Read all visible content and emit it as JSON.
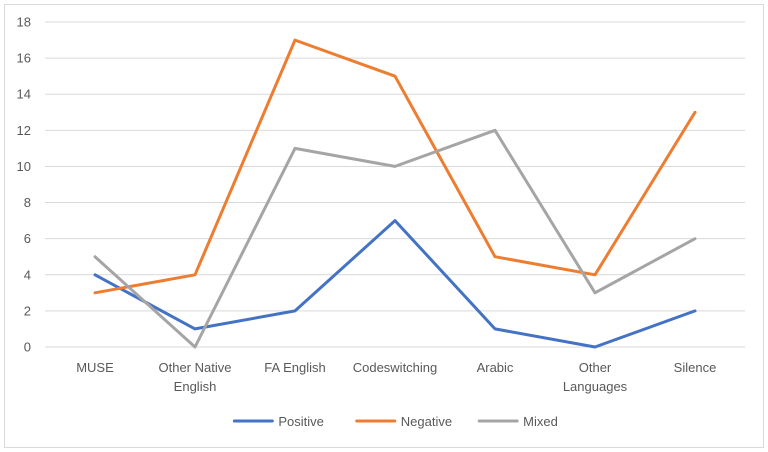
{
  "chart_data": {
    "type": "line",
    "title": "",
    "xlabel": "",
    "ylabel": "",
    "categories": [
      [
        "MUSE"
      ],
      [
        "Other Native",
        "English"
      ],
      [
        "FA English"
      ],
      [
        "Codeswitching"
      ],
      [
        "Arabic"
      ],
      [
        "Other",
        "Languages"
      ],
      [
        "Silence"
      ]
    ],
    "ylim": [
      0,
      18
    ],
    "yticks": [
      0,
      2,
      4,
      6,
      8,
      10,
      12,
      14,
      16,
      18
    ],
    "grid": true,
    "legend_position": "bottom",
    "series": [
      {
        "name": "Positive",
        "color": "#4472c4",
        "values": [
          4,
          1,
          2,
          7,
          1,
          0,
          2
        ]
      },
      {
        "name": "Negative",
        "color": "#ed7d31",
        "values": [
          3,
          4,
          17,
          15,
          5,
          4,
          13
        ]
      },
      {
        "name": "Mixed",
        "color": "#a5a5a5",
        "values": [
          5,
          0,
          11,
          10,
          12,
          3,
          6
        ]
      }
    ]
  }
}
